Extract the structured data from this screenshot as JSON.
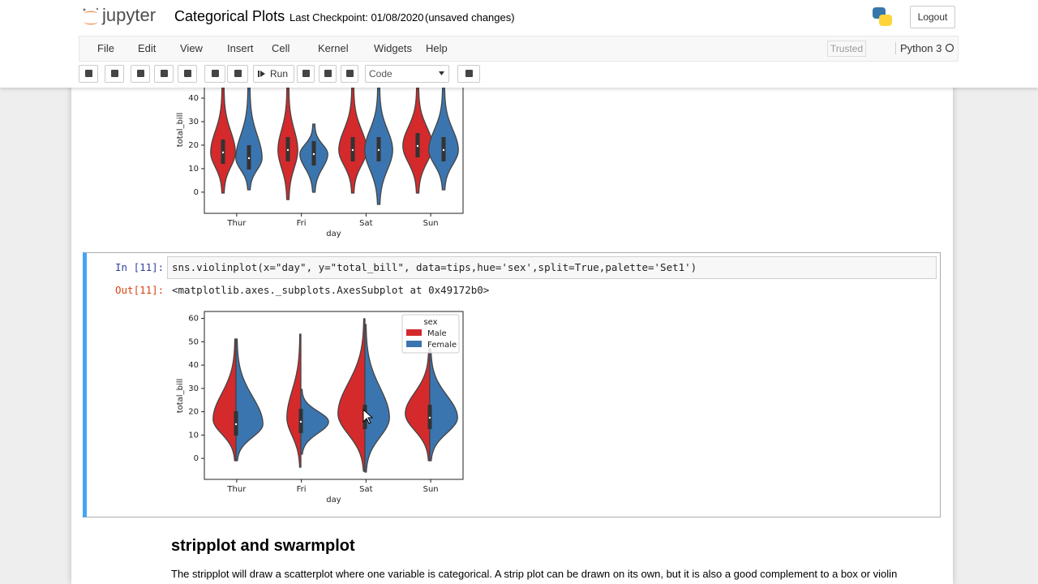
{
  "header": {
    "logo": "jupyter",
    "title": "Categorical Plots",
    "checkpoint": "Last Checkpoint: 01/08/2020",
    "status": "(unsaved changes)",
    "logout": "Logout"
  },
  "menu": {
    "items": [
      "File",
      "Edit",
      "View",
      "Insert",
      "Cell",
      "Kernel",
      "Widgets",
      "Help"
    ],
    "trusted": "Trusted",
    "kernel": "Python 3"
  },
  "toolbar": {
    "run": "Run",
    "cell_type": "Code"
  },
  "plots": [
    {
      "categories": [
        "Thur",
        "Fri",
        "Sat",
        "Sun"
      ],
      "xlabel": "day",
      "ylabel": "total_bill",
      "ylim": [
        -9,
        45
      ],
      "yticks": [
        0,
        10,
        20,
        30,
        40
      ],
      "colors": [
        "#d42a2c",
        "#3b75af"
      ]
    },
    {
      "categories": [
        "Thur",
        "Fri",
        "Sat",
        "Sun"
      ],
      "xlabel": "day",
      "ylabel": "total_bill",
      "ylim": [
        -9,
        63
      ],
      "yticks": [
        0,
        10,
        20,
        30,
        40,
        50,
        60
      ],
      "colors": [
        "#d42a2c",
        "#3b75af"
      ],
      "legend": {
        "title": "sex",
        "entries": [
          "Male",
          "Female"
        ]
      }
    }
  ],
  "cell": {
    "prompt_in": "In [11]:",
    "code": "sns.violinplot(x=\"day\", y=\"total_bill\", data=tips,hue='sex',split=True,palette='Set1')",
    "prompt_out": "Out[11]:",
    "output": "<matplotlib.axes._subplots.AxesSubplot at 0x49172b0>"
  },
  "markdown": {
    "heading": "stripplot and swarmplot",
    "text": "The stripplot will draw a scatterplot where one variable is categorical. A strip plot can be drawn on its own, but it is also a good complement to a box or violin"
  }
}
